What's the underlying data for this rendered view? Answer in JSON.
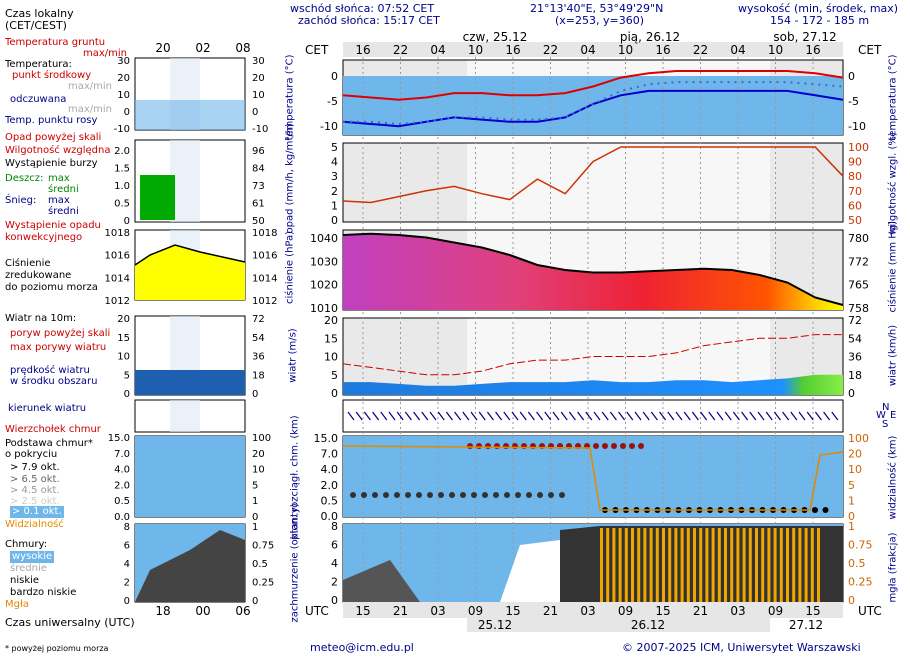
{
  "header": {
    "sunrise": "wschód słońca: 07:52 CET",
    "sunset": "zachód słońca: 15:17 CET",
    "coords": "21°13'40\"E, 53°49'29\"N",
    "grid": "(x=253,  y=360)",
    "elev_title": "wysokość (min, środek, max)",
    "elev_values": "154 - 172 - 185 m"
  },
  "legend": {
    "local_time": "Czas lokalny",
    "local_time_zone": "(CET/CEST)",
    "ground_temp": "Temperatura gruntu",
    "ground_temp_sub": "max/min",
    "temperature": "Temperatura:",
    "mid_point": "punkt środkowy",
    "max_min": "max/min",
    "felt": "odczuwana",
    "felt_max_min": "max/min",
    "dew_point": "Temp. punktu rosy",
    "precip_above": "Opad powyżej skali",
    "humidity": "Wilgotność względna",
    "storm": "Wystąpienie burzy",
    "rain": "Deszcz:",
    "rain_max": "max",
    "rain_mean": "średni",
    "snow": "Śnieg:",
    "snow_max": "max",
    "snow_mean": "średni",
    "precip_conv_1": "Wystąpienie opadu",
    "precip_conv_2": "konwekcyjnego",
    "pressure_1": "Ciśnienie",
    "pressure_2": "zredukowane",
    "pressure_3": "do poziomu morza",
    "wind_title": "Wiatr na 10m:",
    "gust_above": "poryw powyżej skali",
    "gust_max": "max porywy wiatru",
    "wind_speed_1": "prędkość wiatru",
    "wind_speed_2": "w środku obszaru",
    "wind_dir": "kierunek wiatru",
    "cloud_top": "Wierzchołek chmur",
    "cloud_base_1": "Podstawa chmur*",
    "cloud_base_2": "o pokryciu",
    "okt_79": "> 7.9 okt.",
    "okt_65": "> 6.5 okt.",
    "okt_45": "> 4.5 okt.",
    "okt_25": "> 2.5 okt.",
    "okt_01": "> 0.1 okt.",
    "visibility": "Widzialność",
    "clouds": "Chmury:",
    "clouds_high": "wysokie",
    "clouds_mid": "średnie",
    "clouds_low": "niskie",
    "clouds_very_low": "bardzo niskie",
    "fog": "Mgła",
    "utc_time": "Czas uniwersalny (UTC)",
    "footnote": "* powyżej poziomu morza"
  },
  "left_axes": {
    "temp_left": [
      "30",
      "20",
      "10",
      "0",
      "-10"
    ],
    "temp_right": [
      "30",
      "20",
      "10",
      "0",
      "-10"
    ],
    "precip_left": [
      "2.0",
      "1.5",
      "1.0",
      "0.5",
      "0"
    ],
    "precip_right": [
      "96",
      "84",
      "73",
      "61",
      "50"
    ],
    "pres_left": [
      "1018",
      "1016",
      "1014",
      "1012"
    ],
    "pres_right": [
      "1018",
      "1016",
      "1014",
      "1012"
    ],
    "wind_left": [
      "20",
      "15",
      "10",
      "5",
      "0"
    ],
    "wind_right": [
      "72",
      "54",
      "36",
      "18",
      "0"
    ],
    "cloudbase_left": [
      "15.0",
      "7.0",
      "4.0",
      "2.0",
      "0.5",
      "0.0"
    ],
    "cloudbase_right": [
      "100",
      "20",
      "10",
      "5",
      "1",
      "0"
    ],
    "clouds_left": [
      "8",
      "6",
      "4",
      "2",
      "0"
    ],
    "clouds_right": [
      "1",
      "0.75",
      "0.5",
      "0.25",
      "0"
    ],
    "local_ticks": [
      "20",
      "02",
      "08"
    ],
    "utc_ticks": [
      "18",
      "00",
      "06"
    ]
  },
  "main": {
    "cet_label": "CET",
    "utc_label": "UTC",
    "day_labels": [
      "czw, 25.12",
      "pią, 26.12",
      "sob, 27.12"
    ],
    "day_labels_bottom": [
      "25.12",
      "26.12",
      "27.12"
    ],
    "top_hours": [
      "16",
      "22",
      "04",
      "10",
      "16",
      "22",
      "04",
      "10",
      "16",
      "22",
      "04",
      "10",
      "16"
    ],
    "bottom_hours": [
      "15",
      "21",
      "03",
      "09",
      "15",
      "21",
      "03",
      "09",
      "15",
      "21",
      "03",
      "09",
      "15"
    ],
    "temp_axis": [
      "0",
      "-5",
      "-10"
    ],
    "precip_axis": [
      "5",
      "4",
      "3",
      "2",
      "1",
      "0"
    ],
    "humidity_axis": [
      "100",
      "90",
      "80",
      "70",
      "60",
      "50"
    ],
    "pres_axis": [
      "1040",
      "1030",
      "1020",
      "1010"
    ],
    "pres_mmhg_axis": [
      "780",
      "772",
      "765",
      "758"
    ],
    "wind_axis": [
      "20",
      "15",
      "10",
      "5",
      "0"
    ],
    "wind_kmh_axis": [
      "72",
      "54",
      "36",
      "18",
      "0"
    ],
    "cb_axis": [
      "15.0",
      "7.0",
      "4.0",
      "2.0",
      "0.5",
      "0.0"
    ],
    "vis_axis": [
      "100",
      "20",
      "10",
      "5",
      "1",
      "0"
    ],
    "cl_axis": [
      "8",
      "6",
      "4",
      "2",
      "0"
    ],
    "fog_axis": [
      "1",
      "0.75",
      "0.5",
      "0.25",
      "0"
    ],
    "compass": [
      "N",
      "W",
      "E",
      "S"
    ]
  },
  "side_labels": {
    "temp_l": "temperatura (°C)",
    "temp_r": "temperatura (°C)",
    "precip_l": "opad (mm/h, kg/m²/h)",
    "humid_r": "wilgotność wzgl. (%)",
    "pres_l": "ciśnienie (hPa)",
    "pres_r": "ciśnienie (mm Hg)",
    "wind_l": "wiatr (m/s)",
    "wind_r": "wiatr (km/h)",
    "cb_l": "pion. rozciągł. chm. (km)",
    "vis_r": "widzialność (km)",
    "cl_l": "zachmurzenie (oktanty)",
    "fog_r": "mgła (frakcja)"
  },
  "footer": {
    "email": "meteo@icm.edu.pl",
    "copyright": "© 2007-2025 ICM, Uniwersytet Warszawski"
  },
  "chart_data": [
    {
      "type": "line",
      "title": "temperatura",
      "ylim": [
        -12,
        5
      ],
      "series": [
        {
          "name": "punkt środkowy",
          "values": [
            -3,
            -3.5,
            -4,
            -3.5,
            -2.5,
            -2.5,
            -3,
            -3,
            -2.5,
            -1,
            1,
            2,
            2.5,
            2.5,
            2.5,
            2.5,
            2.5,
            2,
            1
          ]
        },
        {
          "name": "odczuwana",
          "values": [
            -9,
            -9.5,
            -10,
            -9,
            -8,
            -8.5,
            -9,
            -9,
            -8,
            -5,
            -3,
            -2,
            -2,
            -2,
            -2,
            -2,
            -2,
            -3,
            -4
          ]
        },
        {
          "name": "Temp. punktu rosy",
          "values": [
            -9,
            -9,
            -9.5,
            -9,
            -8,
            -8,
            -8.5,
            -8.5,
            -8,
            -5,
            -2,
            -0.5,
            0,
            0,
            0,
            0,
            0,
            -0.5,
            -1
          ]
        }
      ]
    },
    {
      "type": "line",
      "title": "wilgotność",
      "ylim": [
        50,
        100
      ],
      "series": [
        {
          "name": "Wilgotność względna",
          "values": [
            63,
            62,
            66,
            70,
            73,
            68,
            64,
            78,
            68,
            90,
            100,
            100,
            100,
            100,
            100,
            100,
            100,
            100,
            80
          ]
        }
      ]
    },
    {
      "type": "area",
      "title": "ciśnienie",
      "ylim": [
        1010,
        1042
      ],
      "series": [
        {
          "name": "Ciśnienie",
          "values": [
            1040,
            1040.5,
            1040,
            1039,
            1037,
            1035,
            1032,
            1028,
            1026,
            1025,
            1025,
            1025.5,
            1026,
            1026.5,
            1026,
            1024,
            1021,
            1015,
            1012
          ]
        }
      ]
    },
    {
      "type": "line",
      "title": "wiatr",
      "ylim": [
        0,
        20
      ],
      "series": [
        {
          "name": "prędkość wiatru",
          "values": [
            3,
            3,
            2.5,
            2,
            2,
            2.5,
            3,
            3,
            3,
            3.5,
            3,
            3,
            3.5,
            3.5,
            3,
            3.5,
            4,
            5,
            5
          ]
        },
        {
          "name": "max porywy wiatru",
          "values": [
            8,
            7,
            6,
            5,
            5,
            6,
            8,
            9,
            9,
            10,
            10,
            10,
            11,
            13,
            14,
            15,
            15,
            16,
            16
          ]
        }
      ]
    }
  ]
}
